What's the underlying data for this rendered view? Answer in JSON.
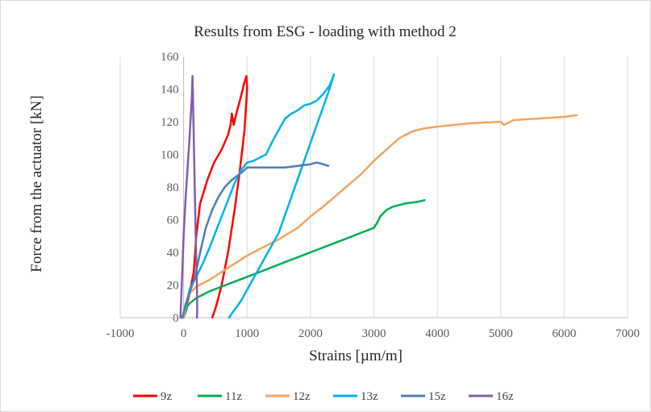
{
  "chart_data": {
    "type": "line",
    "title": "Results from ESG - loading with method 2",
    "xlabel": "Strains [µm/m]",
    "ylabel": "Force from the actuator [kN]",
    "xlim": [
      -1000,
      7000
    ],
    "ylim": [
      0,
      160
    ],
    "x_ticks": [
      -1000,
      0,
      1000,
      2000,
      3000,
      4000,
      5000,
      6000,
      7000
    ],
    "y_ticks": [
      0,
      20,
      40,
      60,
      80,
      100,
      120,
      140,
      160
    ],
    "grid": "vertical",
    "legend_position": "bottom",
    "series": [
      {
        "name": "9z",
        "color": "#ff0000",
        "x": [
          -20,
          80,
          160,
          200,
          260,
          380,
          480,
          600,
          700,
          740,
          760,
          790,
          830,
          880,
          920,
          950,
          990,
          1000,
          960,
          880,
          800,
          700,
          600,
          520,
          470,
          450
        ],
        "y": [
          0,
          12,
          28,
          50,
          70,
          85,
          95,
          103,
          112,
          118,
          125,
          118,
          125,
          132,
          138,
          143,
          148,
          140,
          115,
          88,
          65,
          40,
          20,
          8,
          2,
          0
        ]
      },
      {
        "name": "11z",
        "color": "#00b050",
        "x": [
          0,
          30,
          60,
          100,
          200,
          400,
          600,
          800,
          1000,
          1200,
          1400,
          1600,
          1800,
          2000,
          2200,
          2400,
          2600,
          2800,
          3000,
          3050,
          3100,
          3200,
          3300,
          3500,
          3700,
          3800
        ],
        "y": [
          0,
          3,
          7,
          9,
          12,
          16,
          19,
          22,
          25,
          28,
          31,
          34,
          37,
          40,
          43,
          46,
          49,
          52,
          55,
          58,
          62,
          66,
          68,
          70,
          71,
          72
        ]
      },
      {
        "name": "12z",
        "color": "#f4a460",
        "x": [
          0,
          50,
          100,
          200,
          400,
          600,
          800,
          1000,
          1200,
          1500,
          1800,
          2000,
          2200,
          2500,
          2800,
          3000,
          3200,
          3400,
          3600,
          3800,
          4000,
          4500,
          5000,
          5050,
          5200,
          5600,
          6000,
          6200
        ],
        "y": [
          0,
          10,
          15,
          19,
          23,
          28,
          33,
          38,
          42,
          48,
          55,
          62,
          68,
          78,
          88,
          96,
          103,
          110,
          114,
          116,
          117,
          119,
          120,
          118,
          121,
          122,
          123,
          124
        ]
      },
      {
        "name": "13z",
        "color": "#00b0f0",
        "x": [
          -20,
          50,
          100,
          200,
          300,
          400,
          500,
          600,
          700,
          800,
          900,
          1000,
          1100,
          1200,
          1300,
          1400,
          1500,
          1600,
          1700,
          1800,
          1900,
          2000,
          2100,
          2200,
          2300,
          2350,
          2370,
          2300,
          2100,
          1900,
          1700,
          1500,
          1300,
          1100,
          900,
          750,
          720
        ],
        "y": [
          0,
          10,
          18,
          25,
          33,
          42,
          52,
          62,
          72,
          82,
          90,
          95,
          96,
          98,
          100,
          108,
          115,
          122,
          125,
          127,
          130,
          131,
          133,
          137,
          142,
          147,
          149,
          140,
          118,
          96,
          74,
          52,
          38,
          24,
          10,
          2,
          0
        ]
      },
      {
        "name": "15z",
        "color": "#4a7ebb",
        "x": [
          -20,
          30,
          100,
          180,
          260,
          350,
          450,
          550,
          650,
          750,
          850,
          950,
          1000,
          1100,
          1300,
          1600,
          1800,
          2000,
          2100,
          2200,
          2280
        ],
        "y": [
          0,
          8,
          16,
          25,
          40,
          55,
          66,
          74,
          80,
          84,
          87,
          90,
          92,
          92,
          92,
          92,
          93,
          94,
          95,
          94,
          93
        ]
      },
      {
        "name": "16z",
        "color": "#7f5fa8",
        "x": [
          -50,
          -30,
          0,
          30,
          60,
          90,
          110,
          130,
          140,
          150,
          170,
          190,
          210,
          215,
          210
        ],
        "y": [
          0,
          20,
          50,
          72,
          90,
          108,
          122,
          135,
          148,
          130,
          90,
          50,
          20,
          5,
          0
        ]
      }
    ]
  }
}
